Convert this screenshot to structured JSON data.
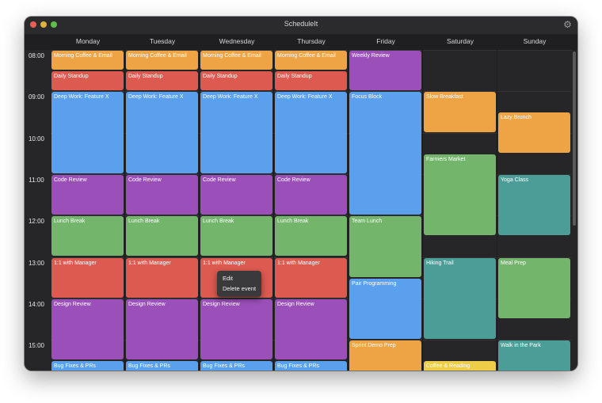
{
  "window": {
    "title": "ScheduleIt"
  },
  "icons": {
    "settings": "gear-icon",
    "settings_glyph": "⚙"
  },
  "days": [
    "Monday",
    "Tuesday",
    "Wednesday",
    "Thursday",
    "Friday",
    "Saturday",
    "Sunday"
  ],
  "hours": [
    "08:00",
    "09:00",
    "10:00",
    "11:00",
    "12:00",
    "13:00",
    "14:00",
    "15:00"
  ],
  "colors": {
    "orange": "#eea445",
    "red": "#dd5a50",
    "blue": "#5aa0ec",
    "purple": "#9b4fb8",
    "green": "#74b56c",
    "teal": "#4a9e97",
    "yellow": "#eecd48"
  },
  "events": [
    {
      "title": "Morning Coffee & Email",
      "day": 0,
      "start": "08:00",
      "end": "08:30",
      "color": "orange"
    },
    {
      "title": "Daily Standup",
      "day": 0,
      "start": "08:30",
      "end": "09:00",
      "color": "red"
    },
    {
      "title": "Deep Work: Feature X",
      "day": 0,
      "start": "09:00",
      "end": "11:00",
      "color": "blue"
    },
    {
      "title": "Code Review",
      "day": 0,
      "start": "11:00",
      "end": "12:00",
      "color": "purple"
    },
    {
      "title": "Lunch Break",
      "day": 0,
      "start": "12:00",
      "end": "13:00",
      "color": "green"
    },
    {
      "title": "1:1 with Manager",
      "day": 0,
      "start": "13:00",
      "end": "14:00",
      "color": "red"
    },
    {
      "title": "Design Review",
      "day": 0,
      "start": "14:00",
      "end": "15:30",
      "color": "purple"
    },
    {
      "title": "Bug Fixes & PRs",
      "day": 0,
      "start": "15:30",
      "end": "16:30",
      "color": "blue"
    },
    {
      "title": "Morning Coffee & Email",
      "day": 1,
      "start": "08:00",
      "end": "08:30",
      "color": "orange"
    },
    {
      "title": "Daily Standup",
      "day": 1,
      "start": "08:30",
      "end": "09:00",
      "color": "red"
    },
    {
      "title": "Deep Work: Feature X",
      "day": 1,
      "start": "09:00",
      "end": "11:00",
      "color": "blue"
    },
    {
      "title": "Code Review",
      "day": 1,
      "start": "11:00",
      "end": "12:00",
      "color": "purple"
    },
    {
      "title": "Lunch Break",
      "day": 1,
      "start": "12:00",
      "end": "13:00",
      "color": "green"
    },
    {
      "title": "1:1 with Manager",
      "day": 1,
      "start": "13:00",
      "end": "14:00",
      "color": "red"
    },
    {
      "title": "Design Review",
      "day": 1,
      "start": "14:00",
      "end": "15:30",
      "color": "purple"
    },
    {
      "title": "Bug Fixes & PRs",
      "day": 1,
      "start": "15:30",
      "end": "16:30",
      "color": "blue"
    },
    {
      "title": "Morning Coffee & Email",
      "day": 2,
      "start": "08:00",
      "end": "08:30",
      "color": "orange"
    },
    {
      "title": "Daily Standup",
      "day": 2,
      "start": "08:30",
      "end": "09:00",
      "color": "red"
    },
    {
      "title": "Deep Work: Feature X",
      "day": 2,
      "start": "09:00",
      "end": "11:00",
      "color": "blue"
    },
    {
      "title": "Code Review",
      "day": 2,
      "start": "11:00",
      "end": "12:00",
      "color": "purple"
    },
    {
      "title": "Lunch Break",
      "day": 2,
      "start": "12:00",
      "end": "13:00",
      "color": "green"
    },
    {
      "title": "1:1 with Manager",
      "day": 2,
      "start": "13:00",
      "end": "14:00",
      "color": "red"
    },
    {
      "title": "Design Review",
      "day": 2,
      "start": "14:00",
      "end": "15:30",
      "color": "purple"
    },
    {
      "title": "Bug Fixes & PRs",
      "day": 2,
      "start": "15:30",
      "end": "16:30",
      "color": "blue"
    },
    {
      "title": "Morning Coffee & Email",
      "day": 3,
      "start": "08:00",
      "end": "08:30",
      "color": "orange"
    },
    {
      "title": "Daily Standup",
      "day": 3,
      "start": "08:30",
      "end": "09:00",
      "color": "red"
    },
    {
      "title": "Deep Work: Feature X",
      "day": 3,
      "start": "09:00",
      "end": "11:00",
      "color": "blue"
    },
    {
      "title": "Code Review",
      "day": 3,
      "start": "11:00",
      "end": "12:00",
      "color": "purple"
    },
    {
      "title": "Lunch Break",
      "day": 3,
      "start": "12:00",
      "end": "13:00",
      "color": "green"
    },
    {
      "title": "1:1 with Manager",
      "day": 3,
      "start": "13:00",
      "end": "14:00",
      "color": "red"
    },
    {
      "title": "Design Review",
      "day": 3,
      "start": "14:00",
      "end": "15:30",
      "color": "purple"
    },
    {
      "title": "Bug Fixes & PRs",
      "day": 3,
      "start": "15:30",
      "end": "16:30",
      "color": "blue"
    },
    {
      "title": "Weekly Review",
      "day": 4,
      "start": "08:00",
      "end": "09:00",
      "color": "purple"
    },
    {
      "title": "Focus Block",
      "day": 4,
      "start": "09:00",
      "end": "12:00",
      "color": "blue"
    },
    {
      "title": "Team Lunch",
      "day": 4,
      "start": "12:00",
      "end": "13:30",
      "color": "green"
    },
    {
      "title": "Pair Programming",
      "day": 4,
      "start": "13:30",
      "end": "15:00",
      "color": "blue"
    },
    {
      "title": "Sprint Demo Prep",
      "day": 4,
      "start": "15:00",
      "end": "16:30",
      "color": "orange"
    },
    {
      "title": "Slow Breakfast",
      "day": 5,
      "start": "09:00",
      "end": "10:00",
      "color": "orange"
    },
    {
      "title": "Farmers Market",
      "day": 5,
      "start": "10:30",
      "end": "12:30",
      "color": "green"
    },
    {
      "title": "Hiking Trail",
      "day": 5,
      "start": "13:00",
      "end": "15:00",
      "color": "teal"
    },
    {
      "title": "Coffee & Reading",
      "day": 5,
      "start": "15:30",
      "end": "16:30",
      "color": "yellow"
    },
    {
      "title": "Lazy Brunch",
      "day": 6,
      "start": "09:30",
      "end": "10:30",
      "color": "orange"
    },
    {
      "title": "Yoga Class",
      "day": 6,
      "start": "11:00",
      "end": "12:30",
      "color": "teal"
    },
    {
      "title": "Meal Prep",
      "day": 6,
      "start": "13:00",
      "end": "14:30",
      "color": "green"
    },
    {
      "title": "Walk in the Park",
      "day": 6,
      "start": "15:00",
      "end": "16:30",
      "color": "teal"
    }
  ],
  "context_menu": {
    "items": [
      "Edit",
      "Delete event"
    ]
  }
}
